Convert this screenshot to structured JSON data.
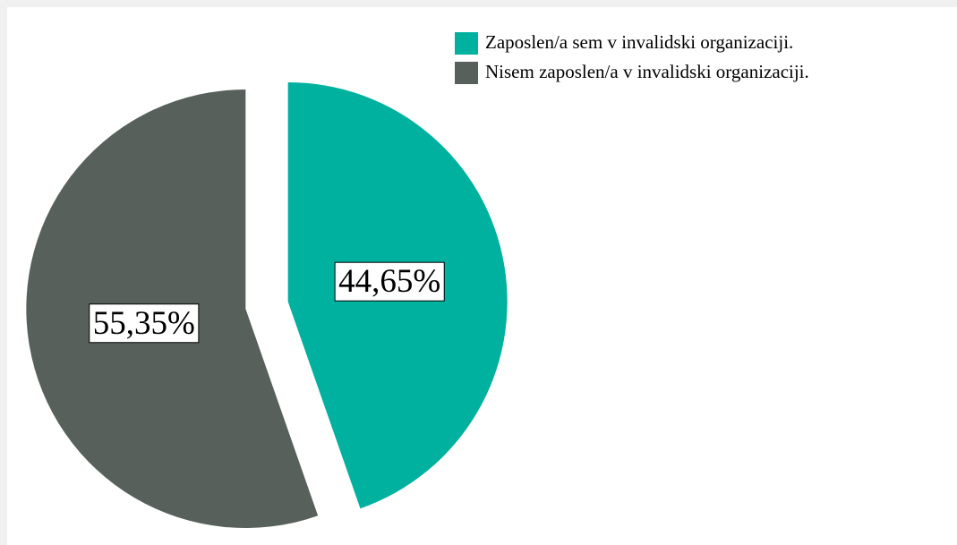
{
  "chart_data": {
    "type": "pie",
    "categories": [
      "Zaposlen/a sem v invalidski organizaciji.",
      "Nisem zaposlen/a v invalidski organizaciji."
    ],
    "values": [
      44.65,
      55.35
    ],
    "value_labels": [
      "44,65%",
      "55,35%"
    ],
    "colors": [
      "#00b19f",
      "#58605b"
    ],
    "legend": "top-right"
  }
}
